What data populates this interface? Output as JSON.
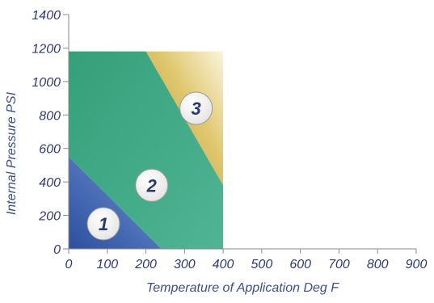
{
  "chart_data": {
    "type": "area",
    "xlabel": "Temperature of Application Deg F",
    "ylabel": "Internal Pressure PSI",
    "xlim": [
      0,
      900
    ],
    "ylim": [
      0,
      1400
    ],
    "x_ticks": [
      0,
      100,
      200,
      300,
      400,
      500,
      600,
      700,
      800,
      900
    ],
    "y_ticks": [
      0,
      200,
      400,
      600,
      800,
      1000,
      1200,
      1400
    ],
    "grid": false,
    "zones": [
      {
        "label": "1",
        "color": "#3f67b8",
        "boundary": [
          [
            0,
            0
          ],
          [
            0,
            550
          ],
          [
            240,
            0
          ]
        ],
        "label_at": [
          90,
          150
        ]
      },
      {
        "label": "2",
        "color": "#3aa886",
        "boundary": [
          [
            0,
            550
          ],
          [
            0,
            1180
          ],
          [
            200,
            1180
          ],
          [
            400,
            380
          ],
          [
            400,
            0
          ],
          [
            240,
            0
          ]
        ],
        "label_at": [
          215,
          380
        ]
      },
      {
        "label": "3",
        "color": "#c9a640",
        "boundary": [
          [
            200,
            1180
          ],
          [
            400,
            1180
          ],
          [
            400,
            380
          ]
        ],
        "label_at": [
          330,
          840
        ]
      }
    ]
  }
}
